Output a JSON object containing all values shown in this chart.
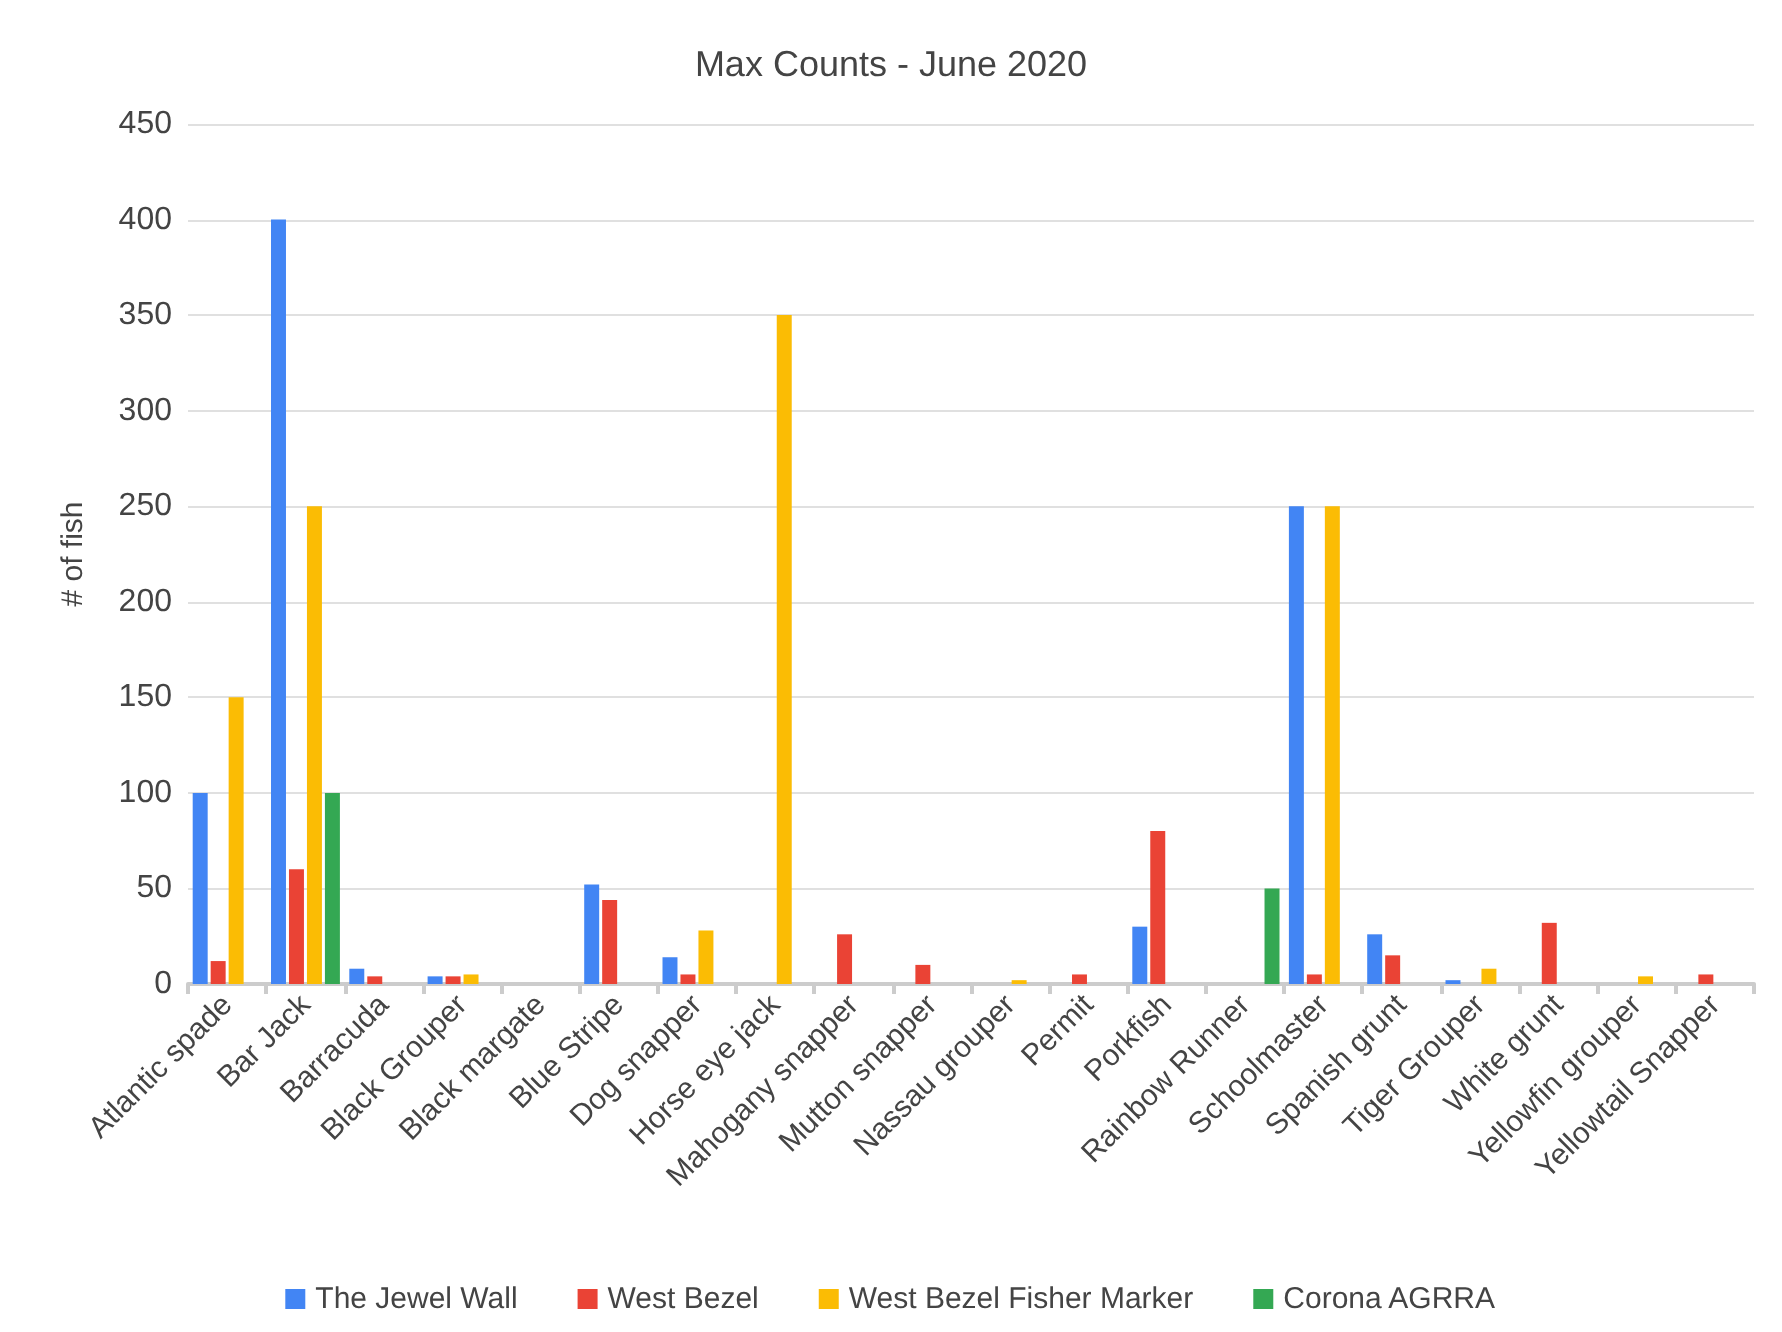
{
  "chart_data": {
    "type": "bar",
    "title": "Max Counts - June 2020",
    "ylabel": "# of fish",
    "categories": [
      "Atlantic spade",
      "Bar Jack",
      "Barracuda",
      "Black Grouper",
      "Black margate",
      "Blue Stripe",
      "Dog snapper",
      "Horse eye jack",
      "Mahogany snapper",
      "Mutton snapper",
      "Nassau grouper",
      "Permit",
      "Porkfish",
      "Rainbow Runner",
      "Schoolmaster",
      "Spanish grunt",
      "Tiger Grouper",
      "White grunt",
      "Yellowfin grouper",
      "Yellowtail Snapper"
    ],
    "series": [
      {
        "name": "The Jewel Wall",
        "color": "#4285f4",
        "values": [
          100,
          400,
          8,
          4,
          null,
          52,
          14,
          null,
          null,
          null,
          null,
          null,
          30,
          null,
          250,
          26,
          2,
          null,
          null,
          null
        ]
      },
      {
        "name": "West Bezel",
        "color": "#ea4335",
        "values": [
          12,
          60,
          4,
          4,
          null,
          44,
          5,
          null,
          26,
          10,
          null,
          5,
          80,
          null,
          5,
          15,
          null,
          32,
          null,
          5
        ]
      },
      {
        "name": "West Bezel Fisher Marker",
        "color": "#fbbc04",
        "values": [
          150,
          250,
          null,
          5,
          null,
          null,
          28,
          350,
          null,
          null,
          2,
          null,
          null,
          null,
          250,
          null,
          8,
          null,
          4,
          null
        ]
      },
      {
        "name": "Corona AGRRA",
        "color": "#34a853",
        "values": [
          null,
          100,
          null,
          null,
          null,
          null,
          null,
          null,
          null,
          null,
          null,
          null,
          null,
          50,
          null,
          null,
          null,
          null,
          null,
          null
        ]
      }
    ],
    "ylim": [
      0,
      450
    ],
    "yticks": [
      0,
      50,
      100,
      150,
      200,
      250,
      300,
      350,
      400,
      450
    ],
    "grid": "y",
    "legend": "bottom"
  }
}
